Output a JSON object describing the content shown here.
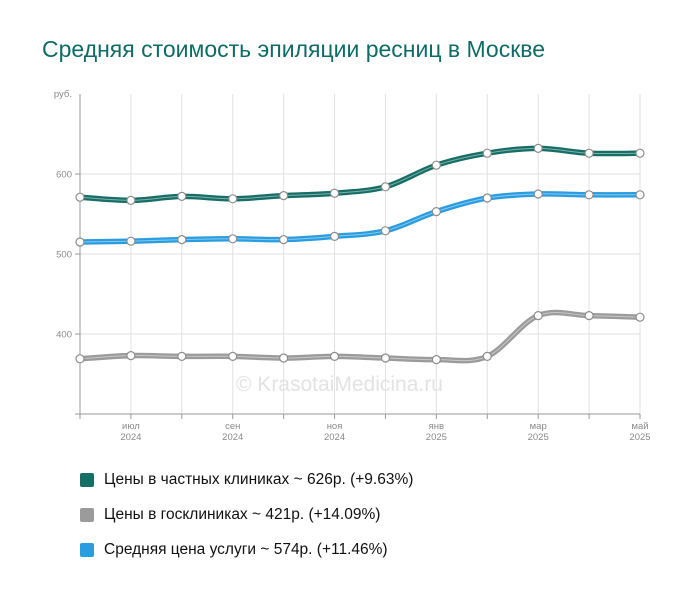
{
  "chart_data": {
    "type": "line",
    "title": "Средняя стоимость эпиляции ресниц в Москве",
    "yunit": "руб.",
    "ylim": [
      300,
      700
    ],
    "yticks": [
      400,
      500,
      600
    ],
    "grid": true,
    "xticks": [
      {
        "index": 1,
        "month": "июл",
        "year": "2024"
      },
      {
        "index": 3,
        "month": "сен",
        "year": "2024"
      },
      {
        "index": 5,
        "month": "ноя",
        "year": "2024"
      },
      {
        "index": 7,
        "month": "янв",
        "year": "2025"
      },
      {
        "index": 9,
        "month": "мар",
        "year": "2025"
      },
      {
        "index": 11,
        "month": "май",
        "year": "2025"
      }
    ],
    "series": [
      {
        "key": "private",
        "color": "#166e66",
        "values": [
          571,
          567,
          572,
          569,
          573,
          576,
          584,
          611,
          626,
          632,
          626,
          626
        ],
        "legend": "Цены в частных клиниках ~ 626р. (+9.63%)"
      },
      {
        "key": "public",
        "color": "#9b9b9b",
        "values": [
          369,
          373,
          372,
          372,
          370,
          372,
          370,
          368,
          372,
          423,
          423,
          421
        ],
        "legend": "Цены в госклиниках ~ 421р. (+14.09%)"
      },
      {
        "key": "average",
        "color": "#2a9de0",
        "values": [
          515,
          516,
          518,
          519,
          518,
          522,
          529,
          553,
          570,
          575,
          574,
          574
        ],
        "legend": "Средняя цена услуги ~ 574р. (+11.46%)"
      }
    ],
    "watermark": "© KrasotaiMedicina.ru"
  }
}
